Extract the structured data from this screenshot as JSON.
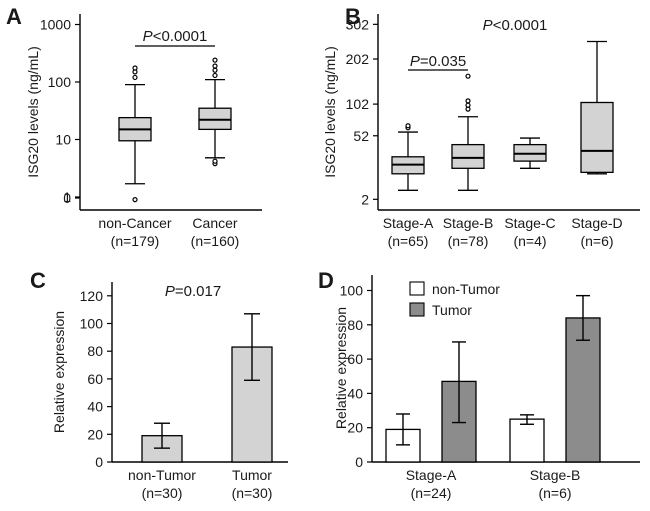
{
  "chart_data": [
    {
      "panel": "A",
      "type": "box",
      "ylabel": "ISG20 levels (ng/mL)",
      "yscale": "log",
      "ytick_labels": [
        "1000",
        "100",
        "10",
        "1",
        "0"
      ],
      "ytick_values": [
        1000,
        100,
        10,
        1,
        0.5
      ],
      "annotation": {
        "p": "P",
        "rest": "<0.0001"
      },
      "categories": [
        {
          "name": "non-Cancer",
          "n": "(n=179)",
          "min": 1.7,
          "q1": 9.5,
          "median": 15,
          "q3": 24,
          "max": 90,
          "outliers": [
            0.9,
            120,
            150,
            175
          ]
        },
        {
          "name": "Cancer",
          "n": "(n=160)",
          "min": 4.8,
          "q1": 15,
          "median": 22,
          "q3": 35,
          "max": 110,
          "outliers": [
            3.8,
            4.2,
            130,
            160,
            190,
            240
          ]
        }
      ]
    },
    {
      "panel": "B",
      "type": "box",
      "ylabel": "ISG20 levels (ng/mL)",
      "yscale": "sqrt",
      "ytick_labels": [
        "302",
        "202",
        "102",
        "52",
        "2"
      ],
      "ytick_values": [
        302,
        202,
        102,
        52,
        2
      ],
      "annotation": {
        "p": "P",
        "rest": "<0.0001"
      },
      "comparison": {
        "p": "P",
        "rest": "=0.035"
      },
      "categories": [
        {
          "name": "Stage-A",
          "n": "(n=65)",
          "min": 5,
          "q1": 14,
          "median": 21,
          "q3": 28,
          "max": 57,
          "outliers": [
            63,
            66
          ]
        },
        {
          "name": "Stage-B",
          "n": "(n=78)",
          "min": 5,
          "q1": 18,
          "median": 27,
          "q3": 41,
          "max": 80,
          "outliers": [
            93,
            100,
            108,
            160
          ]
        },
        {
          "name": "Stage-C",
          "n": "(n=4)",
          "min": 18,
          "q1": 24,
          "median": 31,
          "q3": 41,
          "max": 49,
          "outliers": []
        },
        {
          "name": "Stage-D",
          "n": "(n=6)",
          "min": 14,
          "q1": 15,
          "median": 34,
          "q3": 105,
          "max": 250,
          "outliers": []
        }
      ]
    },
    {
      "panel": "C",
      "type": "bar",
      "ylabel": "Relative expression",
      "ylim": [
        0,
        130
      ],
      "yticks": [
        0,
        20,
        40,
        60,
        80,
        100,
        120
      ],
      "annotation": {
        "p": "P",
        "rest": "=0.017"
      },
      "categories": [
        {
          "name": "non-Tumor",
          "n": "(n=30)",
          "value": 19,
          "err_low": 10,
          "err_high": 28
        },
        {
          "name": "Tumor",
          "n": "(n=30)",
          "value": 83,
          "err_low": 59,
          "err_high": 107
        }
      ]
    },
    {
      "panel": "D",
      "type": "bar",
      "ylabel": "Relative expression",
      "ylim": [
        0,
        110
      ],
      "yticks": [
        0,
        20,
        40,
        60,
        80,
        100
      ],
      "legend": [
        {
          "name": "non-Tumor",
          "color": "#ffffff"
        },
        {
          "name": "Tumor",
          "color": "#8c8c8c"
        }
      ],
      "categories": [
        {
          "name": "Stage-A",
          "n": "(n=24)"
        },
        {
          "name": "Stage-B",
          "n": "(n=6)"
        }
      ],
      "series": [
        {
          "name": "non-Tumor",
          "color": "#ffffff",
          "values": [
            19,
            25
          ],
          "err_low": [
            10,
            22
          ],
          "err_high": [
            28,
            27.5
          ]
        },
        {
          "name": "Tumor",
          "color": "#8c8c8c",
          "values": [
            47,
            84
          ],
          "err_low": [
            23,
            71
          ],
          "err_high": [
            70,
            97
          ]
        }
      ]
    }
  ]
}
